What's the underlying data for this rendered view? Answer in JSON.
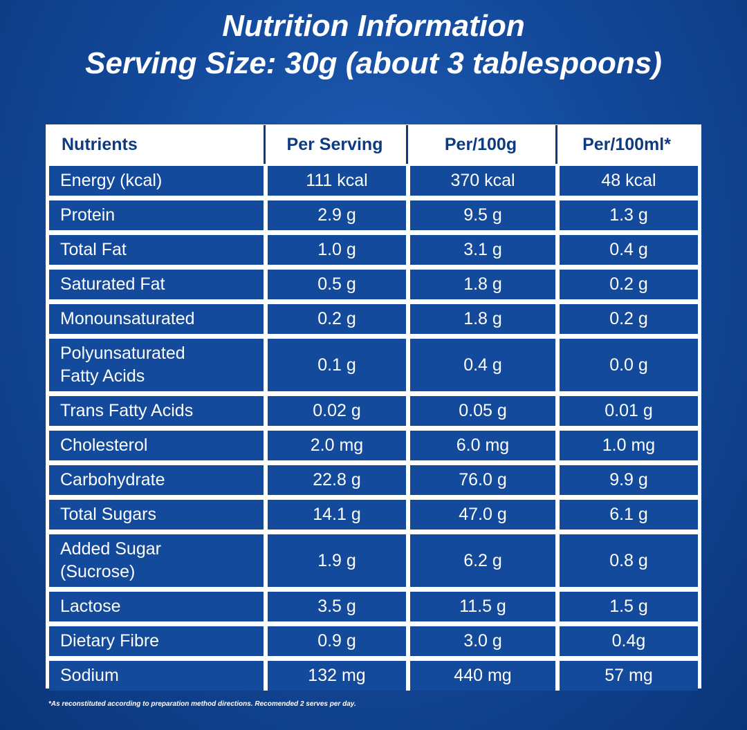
{
  "title": {
    "line1": "Nutrition Information",
    "line2": "Serving Size: 30g (about 3 tablespoons)"
  },
  "table": {
    "headers": [
      "Nutrients",
      "Per Serving",
      "Per/100g",
      "Per/100ml*"
    ],
    "rows": [
      {
        "nutrient": "Energy (kcal)",
        "per_serving": "111 kcal",
        "per_100g": "370 kcal",
        "per_100ml": "48 kcal"
      },
      {
        "nutrient": "Protein",
        "per_serving": "2.9 g",
        "per_100g": "9.5 g",
        "per_100ml": "1.3 g"
      },
      {
        "nutrient": "Total Fat",
        "per_serving": "1.0 g",
        "per_100g": "3.1 g",
        "per_100ml": "0.4 g"
      },
      {
        "nutrient": "Saturated Fat",
        "per_serving": "0.5 g",
        "per_100g": "1.8 g",
        "per_100ml": "0.2 g"
      },
      {
        "nutrient": "Monounsaturated",
        "per_serving": "0.2 g",
        "per_100g": "1.8 g",
        "per_100ml": "0.2 g"
      },
      {
        "nutrient": "Polyunsaturated Fatty Acids",
        "per_serving": "0.1 g",
        "per_100g": "0.4 g",
        "per_100ml": "0.0 g"
      },
      {
        "nutrient": "Trans Fatty Acids",
        "per_serving": "0.02 g",
        "per_100g": "0.05 g",
        "per_100ml": "0.01 g"
      },
      {
        "nutrient": "Cholesterol",
        "per_serving": "2.0 mg",
        "per_100g": "6.0 mg",
        "per_100ml": "1.0 mg"
      },
      {
        "nutrient": "Carbohydrate",
        "per_serving": "22.8 g",
        "per_100g": "76.0 g",
        "per_100ml": "9.9 g"
      },
      {
        "nutrient": "Total Sugars",
        "per_serving": "14.1 g",
        "per_100g": "47.0 g",
        "per_100ml": "6.1 g"
      },
      {
        "nutrient": "Added Sugar (Sucrose)",
        "per_serving": "1.9 g",
        "per_100g": "6.2 g",
        "per_100ml": "0.8 g"
      },
      {
        "nutrient": "Lactose",
        "per_serving": "3.5 g",
        "per_100g": "11.5 g",
        "per_100ml": "1.5 g"
      },
      {
        "nutrient": "Dietary Fibre",
        "per_serving": "0.9 g",
        "per_100g": "3.0 g",
        "per_100ml": "0.4g"
      },
      {
        "nutrient": "Sodium",
        "per_serving": "132 mg",
        "per_100g": "440 mg",
        "per_100ml": "57 mg"
      }
    ]
  },
  "footnote": "*As reconstituted according to preparation method directions. Recomended 2 serves per day."
}
